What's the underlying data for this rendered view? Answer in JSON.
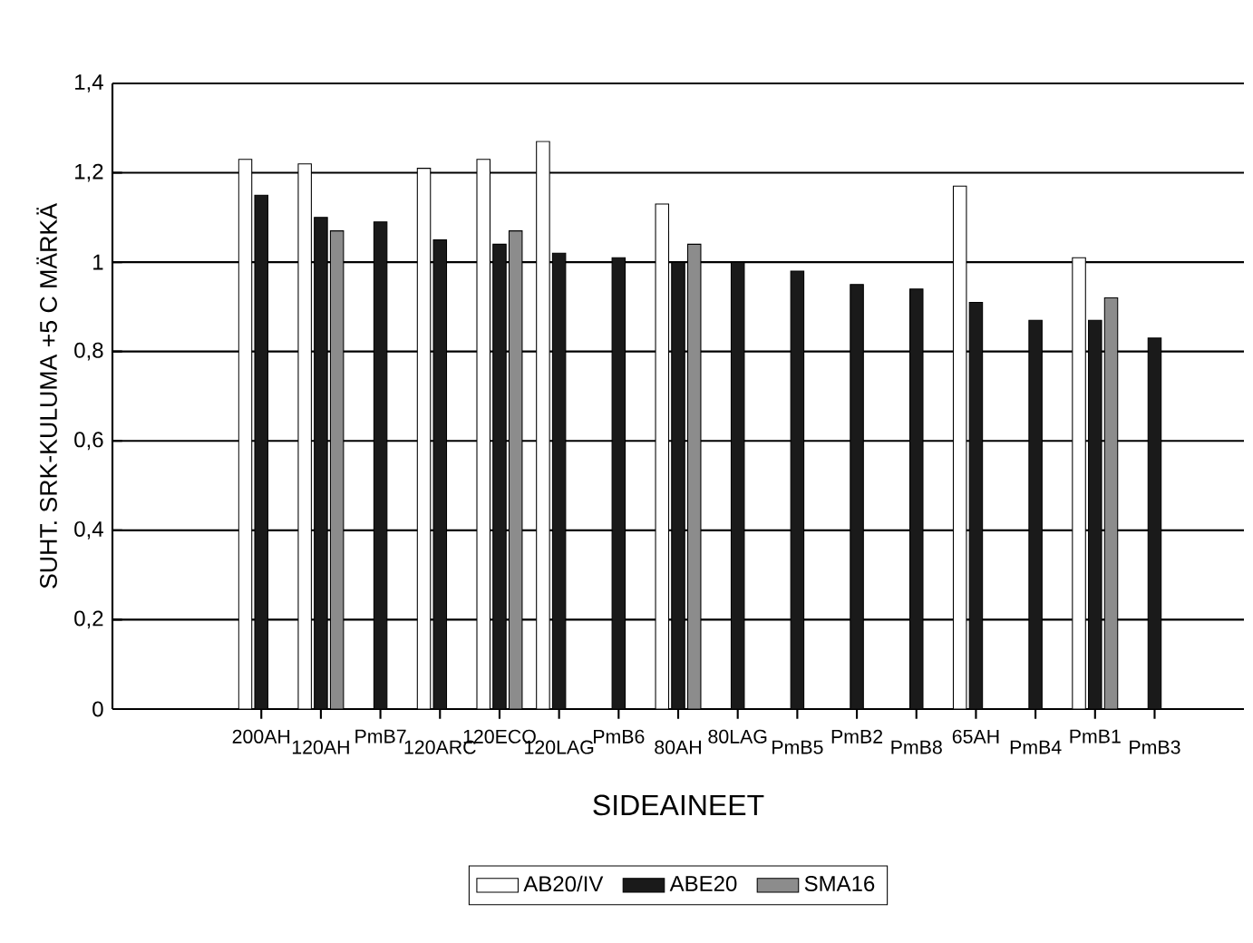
{
  "chart_data": {
    "type": "bar",
    "categories": [
      "200AH",
      "120AH",
      "PmB7",
      "120ARC",
      "120ECO",
      "120LAG",
      "PmB6",
      "80AH",
      "80LAG",
      "PmB5",
      "PmB2",
      "PmB8",
      "65AH",
      "PmB4",
      "PmB1",
      "PmB3"
    ],
    "series": [
      {
        "name": "AB20/IV",
        "color": "#ffffff",
        "values": [
          1.23,
          1.22,
          null,
          1.21,
          1.23,
          1.27,
          null,
          1.13,
          null,
          null,
          null,
          null,
          1.17,
          null,
          1.01,
          null
        ]
      },
      {
        "name": "ABE20",
        "color": "#1a1a1a",
        "values": [
          1.15,
          1.1,
          1.09,
          1.05,
          1.04,
          1.02,
          1.01,
          1.0,
          1.0,
          0.98,
          0.95,
          0.94,
          0.91,
          0.87,
          0.87,
          0.83
        ]
      },
      {
        "name": "SMA16",
        "color": "#8c8c8c",
        "values": [
          null,
          1.07,
          null,
          null,
          1.07,
          null,
          null,
          1.04,
          null,
          null,
          null,
          null,
          null,
          null,
          0.92,
          null
        ]
      }
    ],
    "xlabel": "SIDEAINEET",
    "ylabel": "SUHT. SRK-KULUMA +5 C MÄRKÄ",
    "ylim": [
      0,
      1.4
    ],
    "yticks": [
      0,
      {
        "value": 0.2,
        "label": "0,2"
      },
      {
        "value": 0.4,
        "label": "0,4"
      },
      {
        "value": 0.6,
        "label": "0,6"
      },
      {
        "value": 0.8,
        "label": "0,8"
      },
      1,
      {
        "value": 1.2,
        "label": "1,2"
      },
      {
        "value": 1.4,
        "label": "1,4"
      }
    ],
    "grid": "y",
    "legend": "bottom"
  }
}
